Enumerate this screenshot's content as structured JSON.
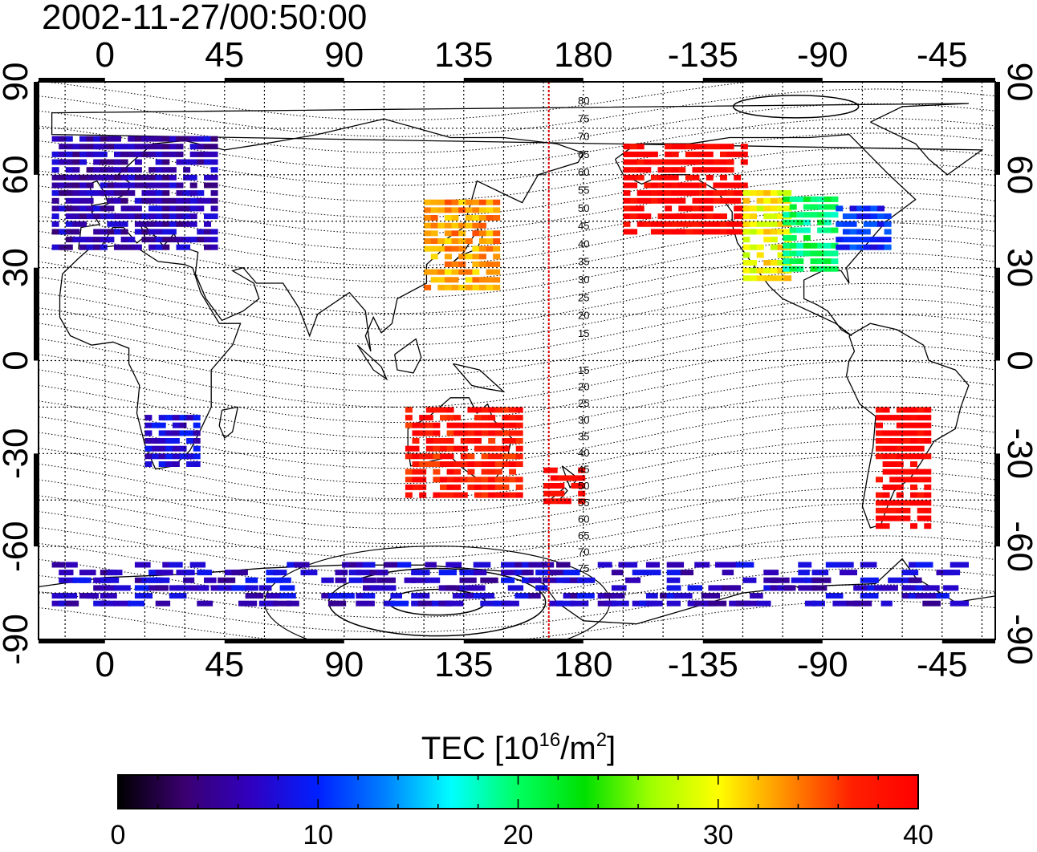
{
  "title": "2002-11-27/00:50:00",
  "map": {
    "lon_ticks": [
      {
        "value": 0,
        "label": "0"
      },
      {
        "value": 45,
        "label": "45"
      },
      {
        "value": 90,
        "label": "90"
      },
      {
        "value": 135,
        "label": "135"
      },
      {
        "value": 180,
        "label": "180"
      },
      {
        "value": 225,
        "label": "-135"
      },
      {
        "value": 270,
        "label": "-90"
      },
      {
        "value": 315,
        "label": "-45"
      }
    ],
    "lat_ticks": [
      {
        "value": 90,
        "label": "90"
      },
      {
        "value": 60,
        "label": "60"
      },
      {
        "value": 30,
        "label": "30"
      },
      {
        "value": 0,
        "label": "0"
      },
      {
        "value": -30,
        "label": "-30"
      },
      {
        "value": -60,
        "label": "-60"
      },
      {
        "value": -90,
        "label": "-90"
      }
    ],
    "lon_range": [
      -25,
      335
    ],
    "lat_range": [
      -90,
      90
    ],
    "grid": true,
    "terminator_lon": 167,
    "terminator_color": "#e00000",
    "mag_labels_north": [
      "80",
      "75",
      "70",
      "65",
      "60",
      "55",
      "50",
      "45",
      "40",
      "35",
      "30",
      "25",
      "20",
      "15"
    ],
    "mag_labels_south": [
      "15",
      "20",
      "25",
      "30",
      "35",
      "40",
      "45",
      "50",
      "55",
      "60",
      "65",
      "70",
      "75"
    ]
  },
  "colorbar": {
    "title_main": "TEC  [10",
    "title_sup1": "16",
    "title_mid": "/m",
    "title_sup2": "2",
    "title_end": "]",
    "ticks": [
      {
        "value": 0,
        "label": "0"
      },
      {
        "value": 10,
        "label": "10"
      },
      {
        "value": 20,
        "label": "20"
      },
      {
        "value": 30,
        "label": "30"
      },
      {
        "value": 40,
        "label": "40"
      }
    ],
    "range": [
      0,
      40
    ],
    "stops": [
      "#000000",
      "#3a0070",
      "#3000c0",
      "#0020ff",
      "#0080ff",
      "#00ffff",
      "#00ff60",
      "#00e000",
      "#a0ff00",
      "#ffff00",
      "#ff9000",
      "#ff2000",
      "#ff0000"
    ]
  },
  "chart_data": {
    "type": "heatmap",
    "title": "2002-11-27/00:50:00",
    "colorbar_label": "TEC [10^16/m^2]",
    "value_range": [
      0,
      40
    ],
    "regions": [
      {
        "lon": [
          -20,
          40
        ],
        "lat": [
          35,
          72
        ],
        "tec": 6
      },
      {
        "lon": [
          15,
          35
        ],
        "lat": [
          -35,
          -18
        ],
        "tec": 8
      },
      {
        "lon": [
          120,
          148
        ],
        "lat": [
          22,
          52
        ],
        "tec": 33
      },
      {
        "lon": [
          113,
          155
        ],
        "lat": [
          -45,
          -15
        ],
        "tec": 38
      },
      {
        "lon": [
          165,
          180
        ],
        "lat": [
          -47,
          -35
        ],
        "tec": 40
      },
      {
        "lon": [
          195,
          240
        ],
        "lat": [
          40,
          70
        ],
        "tec": 40
      },
      {
        "lon": [
          240,
          258
        ],
        "lat": [
          25,
          55
        ],
        "tec": 30
      },
      {
        "lon": [
          255,
          275
        ],
        "lat": [
          28,
          52
        ],
        "tec": 20
      },
      {
        "lon": [
          275,
          295
        ],
        "lat": [
          35,
          50
        ],
        "tec": 10
      },
      {
        "lon": [
          290,
          310
        ],
        "lat": [
          -55,
          -15
        ],
        "tec": 40
      },
      {
        "lon": [
          -20,
          320
        ],
        "lat": [
          -80,
          -65
        ],
        "tec": 7
      }
    ]
  }
}
